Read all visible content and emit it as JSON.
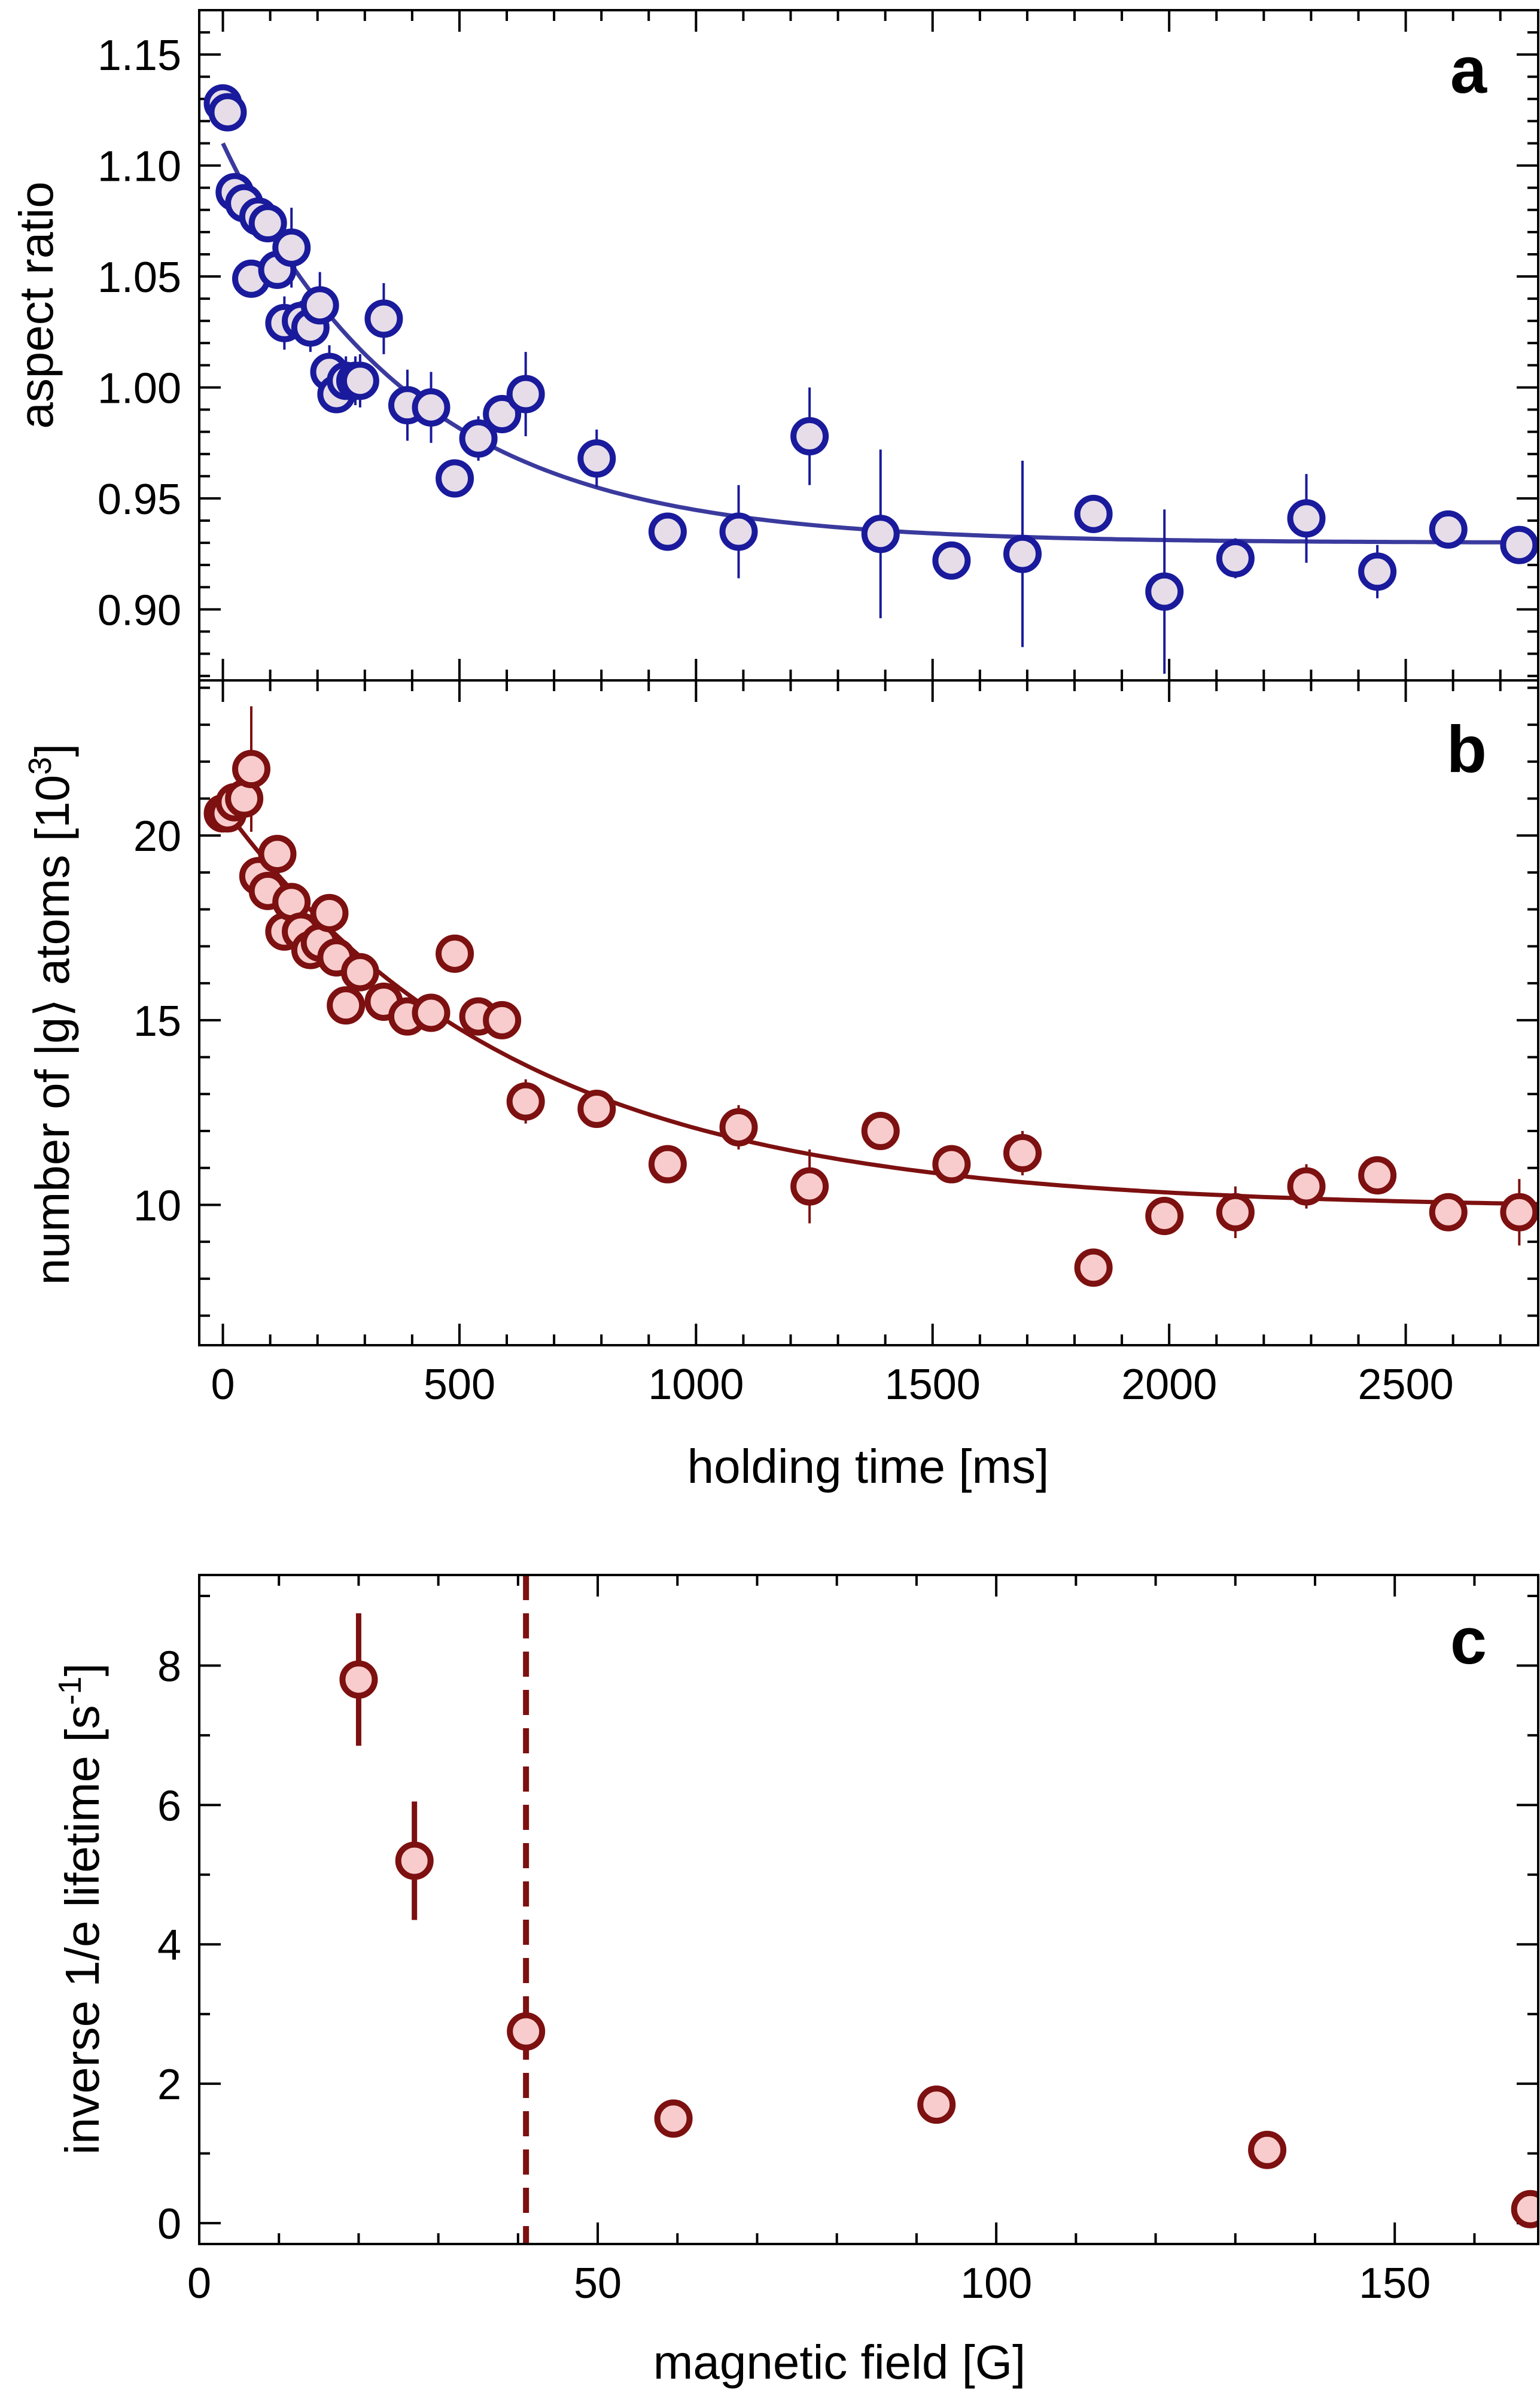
{
  "chart_data": [
    {
      "panel": "a",
      "type": "scatter",
      "title": "",
      "xlabel": "holding time [ms]",
      "ylabel": "aspect ratio",
      "xlim": [
        -50,
        2780
      ],
      "ylim": [
        0.868,
        1.17
      ],
      "x_ticks": [
        0,
        500,
        1000,
        1500,
        2000,
        2500
      ],
      "y_ticks": [
        0.9,
        0.95,
        1.0,
        1.05,
        1.1,
        1.15
      ],
      "y_tick_labels": [
        "0.90",
        "0.95",
        "1.00",
        "1.05",
        "1.10",
        "1.15"
      ],
      "colors": {
        "stroke": "#1a1a9c",
        "fill": "#e6dde8",
        "fit": "#3a3a9e"
      },
      "series": [
        {
          "name": "data",
          "x": [
            0,
            10,
            25,
            45,
            60,
            75,
            95,
            115,
            130,
            145,
            165,
            185,
            205,
            225,
            240,
            260,
            280,
            290,
            340,
            390,
            440,
            490,
            540,
            590,
            640,
            790,
            940,
            1090,
            1240,
            1390,
            1540,
            1690,
            1840,
            1990,
            2140,
            2290,
            2440,
            2590,
            2740
          ],
          "y": [
            1.128,
            1.124,
            1.088,
            1.083,
            1.049,
            1.077,
            1.074,
            1.053,
            1.029,
            1.063,
            1.03,
            1.027,
            1.037,
            1.007,
            0.997,
            1.003,
            1.003,
            1.003,
            1.031,
            0.992,
            0.991,
            0.959,
            0.977,
            0.988,
            0.997,
            0.968,
            0.935,
            0.935,
            0.978,
            0.934,
            0.922,
            0.925,
            0.943,
            0.908,
            0.923,
            0.941,
            0.917,
            0.936,
            0.929
          ],
          "err": [
            0.004,
            0.004,
            0.006,
            0.005,
            0.005,
            0.006,
            0.006,
            0.007,
            0.012,
            0.018,
            0.009,
            0.011,
            0.015,
            0.012,
            0.006,
            0.011,
            0.011,
            0.012,
            0.016,
            0.016,
            0.016,
            0.008,
            0.01,
            0.007,
            0.019,
            0.013,
            0.005,
            0.021,
            0.022,
            0.038,
            0.008,
            0.042,
            0.005,
            0.037,
            0.009,
            0.02,
            0.012,
            0.006,
            0.005
          ]
        }
      ],
      "fit": {
        "model": "exponential decay",
        "y_inf": 0.93,
        "amplitude": 0.18,
        "tau_ms": 400
      },
      "label": "a"
    },
    {
      "panel": "b",
      "type": "scatter",
      "title": "",
      "xlabel": "holding time [ms]",
      "ylabel": "number of |g⟩ atoms [10³]",
      "ylabel_main": "number of |g",
      "ylabel_angle": "⟩",
      "ylabel_rest": " atoms [10",
      "ylabel_sup": "3",
      "ylabel_end": "]",
      "xlim": [
        -50,
        2780
      ],
      "ylim": [
        6.2,
        24.2
      ],
      "x_ticks": [
        0,
        500,
        1000,
        1500,
        2000,
        2500
      ],
      "x_tick_labels": [
        "0",
        "500",
        "1000",
        "1500",
        "2000",
        "2500"
      ],
      "y_ticks": [
        10,
        15,
        20
      ],
      "y_tick_labels": [
        "10",
        "15",
        "20"
      ],
      "colors": {
        "stroke": "#7d1010",
        "fill": "#f8cccc",
        "fit": "#7d1010"
      },
      "series": [
        {
          "name": "data",
          "x": [
            0,
            10,
            25,
            45,
            60,
            75,
            95,
            115,
            130,
            145,
            165,
            185,
            205,
            225,
            240,
            260,
            290,
            340,
            390,
            440,
            490,
            540,
            590,
            640,
            790,
            940,
            1090,
            1240,
            1390,
            1540,
            1690,
            1840,
            1990,
            2140,
            2290,
            2440,
            2590,
            2740
          ],
          "y": [
            20.6,
            20.6,
            20.9,
            21.0,
            21.8,
            18.9,
            18.5,
            19.5,
            17.4,
            18.2,
            17.4,
            16.9,
            17.1,
            17.9,
            16.7,
            15.4,
            16.3,
            15.5,
            15.1,
            15.2,
            16.8,
            15.1,
            15.0,
            12.8,
            12.6,
            11.1,
            12.1,
            10.5,
            12.0,
            11.1,
            11.4,
            8.3,
            9.7,
            9.8,
            10.5,
            10.8,
            9.8,
            9.8
          ],
          "err": [
            0.3,
            0.4,
            0.3,
            0.4,
            1.7,
            0.3,
            0.4,
            0.3,
            0.3,
            0.4,
            0.3,
            0.3,
            0.3,
            0.3,
            0.3,
            0.3,
            0.3,
            0.3,
            0.3,
            0.3,
            0.3,
            0.3,
            0.3,
            0.6,
            0.4,
            0.4,
            0.6,
            1.0,
            0.5,
            0.5,
            0.6,
            0.3,
            0.4,
            0.7,
            0.6,
            0.4,
            0.4,
            0.9
          ]
        }
      ],
      "fit": {
        "model": "exponential decay",
        "y_inf": 9.9,
        "amplitude": 10.9,
        "tau_ms": 620
      },
      "label": "b"
    },
    {
      "panel": "c",
      "type": "scatter",
      "title": "",
      "xlabel": "magnetic field [G]",
      "ylabel": "inverse 1/e lifetime [s⁻¹]",
      "ylabel_main": "inverse 1/e lifetime [s",
      "ylabel_sup": "-1",
      "ylabel_end": "]",
      "xlim": [
        0,
        168
      ],
      "ylim": [
        -0.3,
        9.3
      ],
      "x_ticks": [
        0,
        50,
        100,
        150
      ],
      "x_tick_labels": [
        "0",
        "50",
        "100",
        "150"
      ],
      "y_ticks": [
        0,
        2,
        4,
        6,
        8
      ],
      "y_tick_labels": [
        "0",
        "2",
        "4",
        "6",
        "8"
      ],
      "colors": {
        "stroke": "#7d1010",
        "fill": "#f8cccc",
        "line": "#7d1010"
      },
      "series": [
        {
          "name": "data",
          "x": [
            20,
            27,
            41,
            59.5,
            92.5,
            134,
            167
          ],
          "y": [
            7.8,
            5.2,
            2.75,
            1.5,
            1.7,
            1.05,
            0.2
          ],
          "err": [
            0.95,
            0.85,
            0.15,
            0.1,
            0.1,
            0.1,
            0.1
          ]
        }
      ],
      "vline": {
        "x": 41,
        "style": "dashed"
      },
      "label": "c"
    }
  ]
}
